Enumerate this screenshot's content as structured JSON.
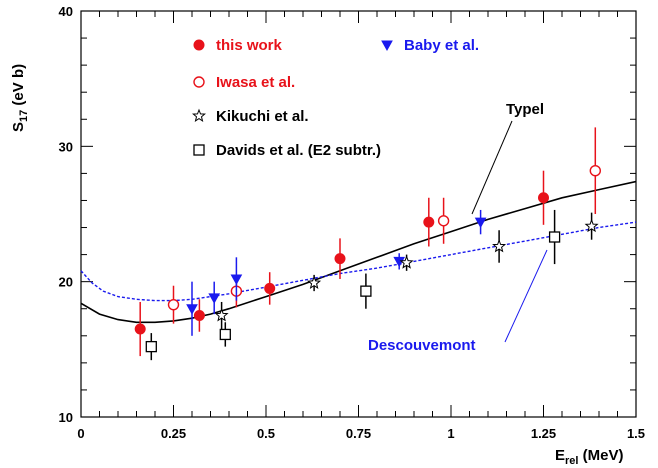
{
  "chart_data": {
    "type": "scatter",
    "xlabel": "E",
    "xlabel_sub": "rel",
    "xlabel_unit": " (MeV)",
    "ylabel": "S",
    "ylabel_sub": "17",
    "ylabel_unit": " (eV b)",
    "xlim": [
      0,
      1.5
    ],
    "ylim": [
      10,
      40
    ],
    "xticks": [
      0,
      0.25,
      0.5,
      0.75,
      1,
      1.25,
      1.5
    ],
    "xtick_labels": [
      "0",
      "0.25",
      "0.5",
      "0.75",
      "1",
      "1.25",
      "1.5"
    ],
    "yticks": [
      10,
      20,
      30,
      40
    ],
    "ytick_labels": [
      "10",
      "20",
      "30",
      "40"
    ],
    "grid": false,
    "legend_position": "top-left",
    "series": [
      {
        "name": "this work",
        "marker": "filled-circle",
        "color": "#e8121a",
        "points": [
          {
            "x": 0.16,
            "y": 16.5,
            "err": 2.0
          },
          {
            "x": 0.32,
            "y": 17.5,
            "err": 1.2
          },
          {
            "x": 0.51,
            "y": 19.5,
            "err": 1.2
          },
          {
            "x": 0.7,
            "y": 21.7,
            "err": 1.5
          },
          {
            "x": 0.94,
            "y": 24.4,
            "err": 1.8
          },
          {
            "x": 1.25,
            "y": 26.2,
            "err": 2.0
          }
        ]
      },
      {
        "name": "Iwasa et al.",
        "marker": "open-circle",
        "color": "#e8121a",
        "points": [
          {
            "x": 0.25,
            "y": 18.3,
            "err": 1.4
          },
          {
            "x": 0.42,
            "y": 19.3,
            "err": 1.2
          },
          {
            "x": 0.98,
            "y": 24.5,
            "err": 1.7
          },
          {
            "x": 1.39,
            "y": 28.2,
            "err": 3.2
          }
        ]
      },
      {
        "name": "Baby et al.",
        "marker": "filled-triangle-down",
        "color": "#1a1aee",
        "points": [
          {
            "x": 0.3,
            "y": 18.0,
            "err": 2.0
          },
          {
            "x": 0.36,
            "y": 18.8,
            "err": 1.2
          },
          {
            "x": 0.42,
            "y": 20.2,
            "err": 1.6
          },
          {
            "x": 0.86,
            "y": 21.5,
            "err": 0.6
          },
          {
            "x": 1.08,
            "y": 24.4,
            "err": 0.9
          }
        ]
      },
      {
        "name": "Kikuchi et al.",
        "marker": "open-star",
        "color": "#000000",
        "points": [
          {
            "x": 0.38,
            "y": 17.5,
            "err": 1.0
          },
          {
            "x": 0.63,
            "y": 19.9,
            "err": 0.6
          },
          {
            "x": 0.88,
            "y": 21.4,
            "err": 0.6
          },
          {
            "x": 1.13,
            "y": 22.6,
            "err": 1.2
          },
          {
            "x": 1.38,
            "y": 24.1,
            "err": 1.0
          }
        ]
      },
      {
        "name": "Davids et al. (E2 subtr.)",
        "marker": "open-square",
        "color": "#000000",
        "points": [
          {
            "x": 0.19,
            "y": 15.2,
            "err": 1.0
          },
          {
            "x": 0.39,
            "y": 16.1,
            "err": 0.9
          },
          {
            "x": 0.77,
            "y": 19.3,
            "err": 1.3
          },
          {
            "x": 1.28,
            "y": 23.3,
            "err": 2.0
          }
        ]
      }
    ],
    "curves": [
      {
        "name": "Typel",
        "style": "solid",
        "color": "#000000",
        "x": [
          0,
          0.05,
          0.1,
          0.15,
          0.2,
          0.25,
          0.3,
          0.35,
          0.4,
          0.5,
          0.6,
          0.7,
          0.8,
          0.9,
          1.0,
          1.1,
          1.2,
          1.3,
          1.4,
          1.5
        ],
        "y": [
          18.4,
          17.6,
          17.2,
          17.0,
          17.0,
          17.1,
          17.3,
          17.6,
          18.0,
          18.9,
          19.8,
          20.8,
          21.8,
          22.8,
          23.7,
          24.6,
          25.4,
          26.2,
          26.8,
          27.4
        ]
      },
      {
        "name": "Descouvemont",
        "style": "dashed",
        "color": "#1a1aee",
        "x": [
          0,
          0.03,
          0.06,
          0.1,
          0.15,
          0.2,
          0.25,
          0.3,
          0.35,
          0.4,
          0.5,
          0.6,
          0.7,
          0.8,
          0.9,
          1.0,
          1.1,
          1.2,
          1.3,
          1.4,
          1.5
        ],
        "y": [
          20.8,
          19.9,
          19.3,
          18.9,
          18.7,
          18.6,
          18.6,
          18.7,
          18.9,
          19.1,
          19.6,
          20.1,
          20.6,
          21.0,
          21.5,
          22.0,
          22.5,
          23.0,
          23.5,
          24.0,
          24.4
        ]
      }
    ],
    "annotations": [
      {
        "text": "Typel",
        "color": "#000000"
      },
      {
        "text": "Descouvemont",
        "color": "#1a1aee"
      }
    ]
  }
}
